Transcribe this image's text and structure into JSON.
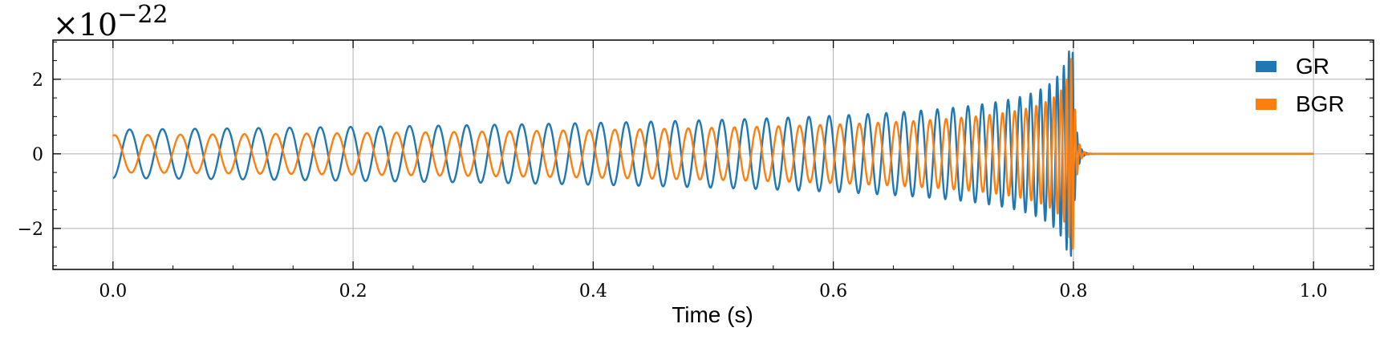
{
  "chart_data": {
    "type": "line",
    "title": "",
    "xlabel": "Time (s)",
    "ylabel": "",
    "exponent_label": "×10",
    "exponent_power": "−22",
    "xlim": [
      -0.05,
      1.05
    ],
    "ylim": [
      -3.1,
      3.05
    ],
    "xticks": [
      0.0,
      0.2,
      0.4,
      0.6,
      0.8,
      1.0
    ],
    "xtick_labels": [
      "0.0",
      "0.2",
      "0.4",
      "0.6",
      "0.8",
      "1.0"
    ],
    "yticks": [
      -2,
      0,
      2
    ],
    "ytick_labels": [
      "−2",
      "0",
      "2"
    ],
    "grid": true,
    "legend_position": "top-right",
    "series": [
      {
        "name": "GR",
        "color": "#1f77b4",
        "description_points": {
          "t_start": 0.0,
          "t_merger": 0.8,
          "t_end": 1.0,
          "amplitude_start": 0.65,
          "amplitude_peak": 2.75,
          "frequency_start_hz": 36,
          "frequency_end_hz": 170
        }
      },
      {
        "name": "BGR",
        "color": "#ff7f0e",
        "description_points": {
          "t_start": 0.0,
          "t_merger": 0.8,
          "t_end": 1.0,
          "amplitude_start": 0.5,
          "amplitude_peak": 2.85,
          "frequency_start_hz": 36,
          "frequency_end_hz": 170
        }
      }
    ]
  }
}
